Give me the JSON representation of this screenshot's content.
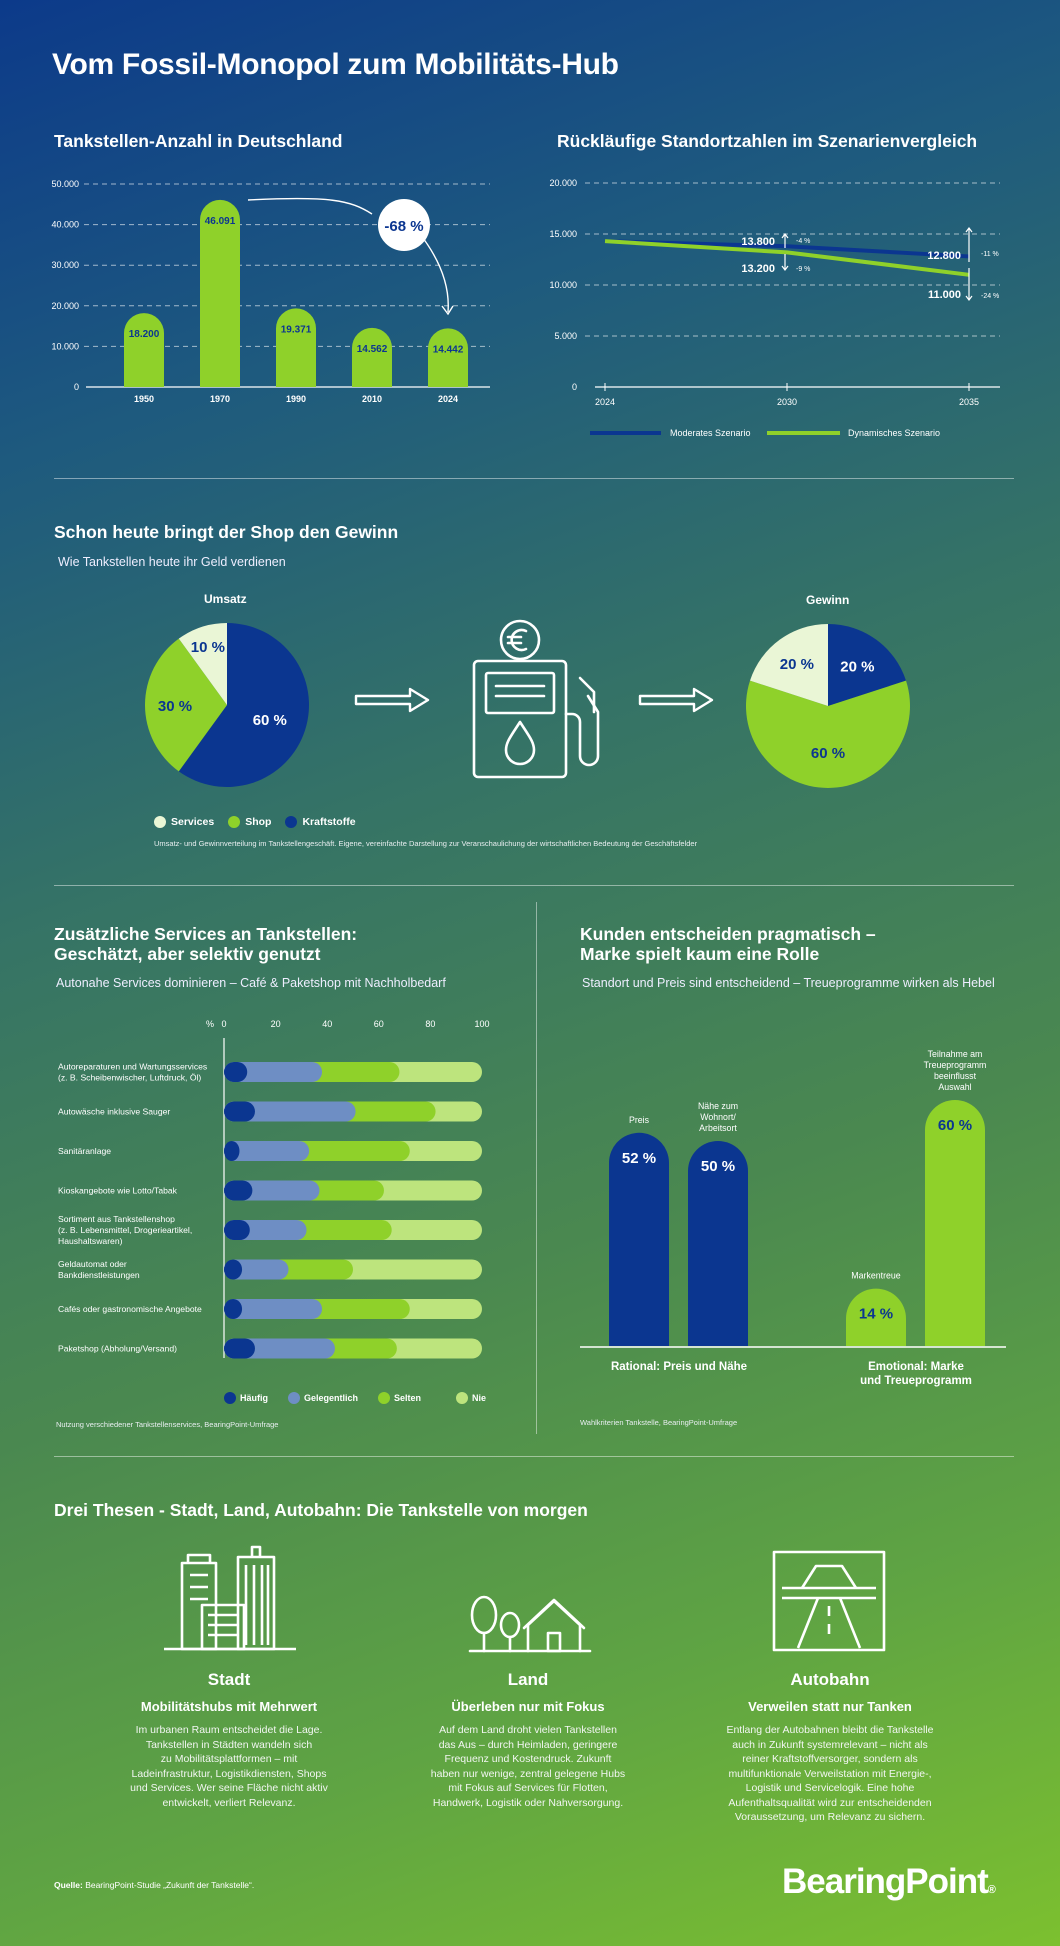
{
  "title": "Vom Fossil-Monopol zum Mobilitäts-Hub",
  "chart_data": [
    {
      "id": "tankstellen",
      "type": "bar",
      "title": "Tankstellen-Anzahl in Deutschland",
      "categories": [
        "1950",
        "1970",
        "1990",
        "2010",
        "2024"
      ],
      "values": [
        18200,
        46091,
        19371,
        14562,
        14442
      ],
      "value_labels": [
        "18.200",
        "46.091",
        "19.371",
        "14.562",
        "14.442"
      ],
      "ylim": [
        0,
        50000
      ],
      "yticks": [
        "0",
        "10.000",
        "20.000",
        "30.000",
        "40.000",
        "50.000"
      ],
      "annotation": "-68 %",
      "grid": true,
      "color": "#8fd12a"
    },
    {
      "id": "szenarien",
      "type": "line",
      "title": "Rückläufige Standortzahlen im Szenarienvergleich",
      "x": [
        "2024",
        "2030",
        "2035"
      ],
      "ylim": [
        0,
        20000
      ],
      "yticks": [
        "0",
        "5.000",
        "10.000",
        "15.000",
        "20.000"
      ],
      "series": [
        {
          "name": "Moderates Szenario",
          "color": "#0b3690",
          "values": [
            14300,
            13800,
            12800
          ],
          "labels": [
            "",
            "13.800",
            "12.800"
          ],
          "pct": [
            "",
            "-4 %",
            "-11 %"
          ]
        },
        {
          "name": "Dynamisches Szenario",
          "color": "#8fd12a",
          "values": [
            14300,
            13200,
            11000
          ],
          "labels": [
            "",
            "13.200",
            "11.000"
          ],
          "pct": [
            "",
            "-9 %",
            "-24 %"
          ]
        }
      ],
      "legend": "bottom"
    },
    {
      "id": "umsatz",
      "type": "pie",
      "title": "Umsatz",
      "slices": [
        {
          "name": "Kraftstoffe",
          "value": 60,
          "color": "#0b3690"
        },
        {
          "name": "Shop",
          "value": 30,
          "color": "#8fd12a"
        },
        {
          "name": "Services",
          "value": 10,
          "color": "#eaf6d6"
        }
      ]
    },
    {
      "id": "gewinn",
      "type": "pie",
      "title": "Gewinn",
      "slices": [
        {
          "name": "Kraftstoffe",
          "value": 20,
          "color": "#0b3690"
        },
        {
          "name": "Shop",
          "value": 60,
          "color": "#8fd12a"
        },
        {
          "name": "Services",
          "value": 20,
          "color": "#eaf6d6"
        }
      ]
    },
    {
      "id": "services",
      "type": "bar",
      "orientation": "horizontal",
      "stacked": true,
      "xlim": [
        0,
        100
      ],
      "xticks": [
        "0",
        "20",
        "40",
        "60",
        "80",
        "100"
      ],
      "unit": "%",
      "categories": [
        "Autoreparaturen und Wartungsservices\n(z. B. Scheibenwischer, Luftdruck, Öl)",
        "Autowäsche inklusive Sauger",
        "Sanitäranlage",
        "Kioskangebote wie Lotto/Tabak",
        "Sortiment aus Tankstellenshop\n(z. B. Lebensmittel, Drogerieartikel,\nHaushaltswaren)",
        "Geldautomat oder\nBankdienstleistungen",
        "Cafés oder gastronomische Angebote",
        "Paketshop (Abholung/Versand)"
      ],
      "series": [
        {
          "name": "Häufig",
          "color": "#0b3690",
          "values": [
            9,
            12,
            6,
            11,
            10,
            7,
            7,
            12
          ]
        },
        {
          "name": "Gelegentlich",
          "color": "#6e8ec4",
          "values": [
            29,
            39,
            27,
            26,
            22,
            18,
            31,
            31
          ]
        },
        {
          "name": "Selten",
          "color": "#8fd12a",
          "values": [
            30,
            31,
            39,
            25,
            33,
            25,
            34,
            24
          ]
        },
        {
          "name": "Nie",
          "color": "#bde47d",
          "values": [
            32,
            18,
            28,
            38,
            35,
            50,
            28,
            33
          ]
        }
      ]
    },
    {
      "id": "kunden",
      "type": "bar",
      "ylim": [
        0,
        60
      ],
      "categories": [
        "Preis",
        "Nähe zum\nWohnort/\nArbeitsort",
        "Markentreue",
        "Teilnahme am\nTreueprogramm\nbeeinflusst\nAuswahl"
      ],
      "values": [
        52,
        50,
        14,
        60
      ],
      "value_labels": [
        "52 %",
        "50 %",
        "14 %",
        "60 %"
      ],
      "colors": [
        "#0b3690",
        "#0b3690",
        "#8fd12a",
        "#8fd12a"
      ],
      "groups": [
        "Rational: Preis und Nähe",
        "Emotional: Marke\nund Treueprogramm"
      ]
    }
  ],
  "sections": {
    "shop": {
      "title": "Schon heute bringt der Shop den Gewinn",
      "subtitle": "Wie Tankstellen heute ihr Geld verdienen",
      "legend": [
        "Services",
        "Shop",
        "Kraftstoffe"
      ],
      "note": "Umsatz- und Gewinnverteilung im Tankstellengeschäft. Eigene, vereinfachte Darstellung  zur Veranschaulichung der wirtschaftlichen Bedeutung der Geschäftsfelder",
      "pump_icon": "fuel-pump-euro-icon"
    },
    "services": {
      "title": "Zusätzliche Services an Tankstellen:\nGeschätzt, aber selektiv genutzt",
      "subtitle": "Autonahe Services dominieren – Café & Paketshop mit Nachholbedarf",
      "note": "Nutzung verschiedener Tankstellenservices, BearingPoint-Umfrage"
    },
    "kunden": {
      "title": "Kunden entscheiden pragmatisch –\nMarke spielt kaum eine Rolle",
      "subtitle": "Standort und Preis sind entscheidend – Treueprogramme wirken als Hebel",
      "note": "Wahlkriterien Tankstelle, BearingPoint-Umfrage"
    },
    "thesen": {
      "title": "Drei Thesen - Stadt, Land, Autobahn: Die Tankstelle von morgen",
      "items": [
        {
          "icon": "city-buildings-icon",
          "title": "Stadt",
          "subtitle": "Mobilitätshubs mit Mehrwert",
          "text": "Im urbanen Raum entscheidet die Lage.\nTankstellen in Städten wandeln sich\nzu Mobilitätsplattformen – mit\nLadeinfrastruktur, Logistikdiensten, Shops\nund Services. Wer seine Fläche nicht aktiv\nentwickelt, verliert Relevanz."
        },
        {
          "icon": "village-house-icon",
          "title": "Land",
          "subtitle": "Überleben nur mit Fokus",
          "text": "Auf dem Land droht vielen Tankstellen\ndas Aus – durch Heimladen, geringere\nFrequenz und Kostendruck. Zukunft\nhaben nur wenige, zentral gelegene Hubs\nmit Fokus auf Services für Flotten,\nHandwerk, Logistik oder Nahversorgung."
        },
        {
          "icon": "highway-icon",
          "title": "Autobahn",
          "subtitle": "Verweilen statt nur Tanken",
          "text": "Entlang der Autobahnen bleibt die Tankstelle\nauch in Zukunft systemrelevant – nicht als\nreiner Kraftstoffversorger, sondern als\nmultifunktionale Verweilstation mit Energie-,\nLogistik und Servicelogik. Eine hohe\nAufenthaltsqualität wird zur entscheidenden\nVoraussetzung, um Relevanz zu sichern."
        }
      ]
    }
  },
  "footer": {
    "source_label": "Quelle:",
    "source_text": "BearingPoint-Studie „Zukunft der Tankstelle“.",
    "brand": "BearingPoint",
    "brand_mark": "®"
  }
}
